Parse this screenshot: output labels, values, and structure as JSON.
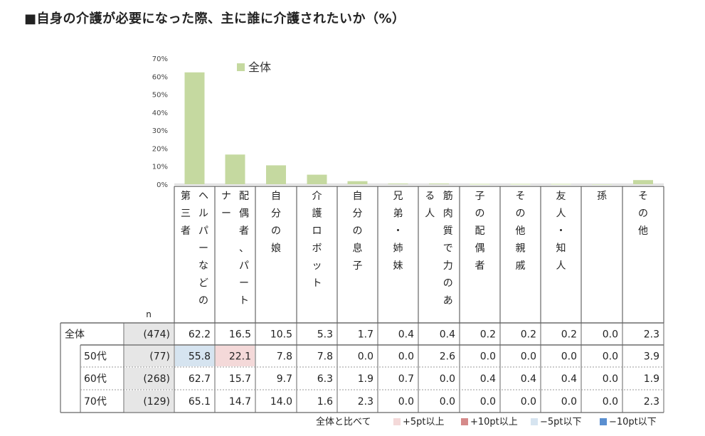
{
  "title": "■自身の介護が必要になった際、主に誰に介護されたいか（%）",
  "chart_data": {
    "type": "bar",
    "legend": [
      "全体"
    ],
    "bar_color": "#c5d9a0",
    "categories": [
      [
        "ヘルパーなどの",
        "第三者"
      ],
      [
        "配偶者、パート",
        "ナー"
      ],
      [
        "自分の娘"
      ],
      [
        "介護ロボット"
      ],
      [
        "自分の息子"
      ],
      [
        "兄弟・姉妹"
      ],
      [
        "筋肉質で力のあ",
        "る人"
      ],
      [
        "子の配偶者"
      ],
      [
        "その他親戚"
      ],
      [
        "友人・知人"
      ],
      [
        "孫"
      ],
      [
        "その他"
      ]
    ],
    "values": [
      62.2,
      16.5,
      10.5,
      5.3,
      1.7,
      0.4,
      0.4,
      0.2,
      0.2,
      0.2,
      0.0,
      2.3
    ],
    "ylim": [
      0,
      70
    ],
    "yticks": [
      "0%",
      "10%",
      "20%",
      "30%",
      "40%",
      "50%",
      "60%",
      "70%"
    ],
    "ytick_values": [
      0,
      10,
      20,
      30,
      40,
      50,
      60,
      70
    ]
  },
  "table": {
    "n_header": "n",
    "rows": [
      {
        "label": "全体",
        "n": "(474)",
        "values": [
          "62.2",
          "16.5",
          "10.5",
          "5.3",
          "1.7",
          "0.4",
          "0.4",
          "0.2",
          "0.2",
          "0.2",
          "0.0",
          "2.3"
        ],
        "highlights": [
          null,
          null,
          null,
          null,
          null,
          null,
          null,
          null,
          null,
          null,
          null,
          null
        ]
      },
      {
        "label": "50代",
        "n": "(77)",
        "values": [
          "55.8",
          "22.1",
          "7.8",
          "7.8",
          "0.0",
          "0.0",
          "2.6",
          "0.0",
          "0.0",
          "0.0",
          "0.0",
          "3.9"
        ],
        "highlights": [
          "-5",
          "+5",
          null,
          null,
          null,
          null,
          null,
          null,
          null,
          null,
          null,
          null
        ]
      },
      {
        "label": "60代",
        "n": "(268)",
        "values": [
          "62.7",
          "15.7",
          "9.7",
          "6.3",
          "1.9",
          "0.7",
          "0.0",
          "0.4",
          "0.4",
          "0.4",
          "0.0",
          "1.9"
        ],
        "highlights": [
          null,
          null,
          null,
          null,
          null,
          null,
          null,
          null,
          null,
          null,
          null,
          null
        ]
      },
      {
        "label": "70代",
        "n": "(129)",
        "values": [
          "65.1",
          "14.7",
          "14.0",
          "1.6",
          "2.3",
          "0.0",
          "0.0",
          "0.0",
          "0.0",
          "0.0",
          "0.0",
          "2.3"
        ],
        "highlights": [
          null,
          null,
          null,
          null,
          null,
          null,
          null,
          null,
          null,
          null,
          null,
          null
        ]
      }
    ]
  },
  "footer_legend": {
    "caption": "全体と比べて",
    "items": [
      {
        "key": "+5",
        "label": "+5pt以上",
        "color": "#f4d9d9"
      },
      {
        "key": "+10",
        "label": "+10pt以上",
        "color": "#d58a8a"
      },
      {
        "key": "-5",
        "label": "−5pt以下",
        "color": "#d6e4f0"
      },
      {
        "key": "-10",
        "label": "−10pt以下",
        "color": "#5a8fd0"
      }
    ]
  }
}
